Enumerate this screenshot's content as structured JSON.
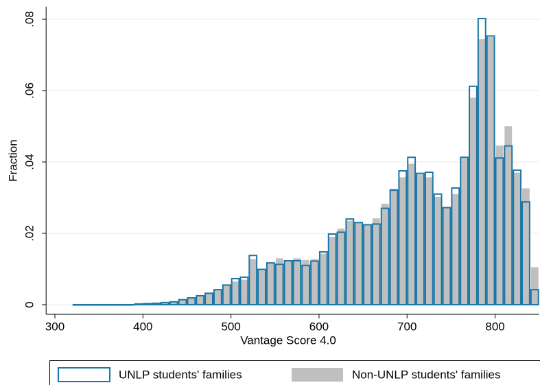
{
  "chart_data": {
    "type": "histogram",
    "xlabel": "Vantage Score 4.0",
    "ylabel": "Fraction",
    "bins": [
      320,
      330,
      340,
      350,
      360,
      370,
      380,
      390,
      400,
      410,
      420,
      430,
      440,
      450,
      460,
      470,
      480,
      490,
      500,
      510,
      520,
      530,
      540,
      550,
      560,
      570,
      580,
      590,
      600,
      610,
      620,
      630,
      640,
      650,
      660,
      670,
      680,
      690,
      700,
      710,
      720,
      730,
      740,
      750,
      760,
      770,
      780,
      790,
      800,
      810,
      820,
      830,
      840,
      850
    ],
    "series": [
      {
        "name": "Non-UNLP students' families",
        "color": "#c0c0c0",
        "style": "filled",
        "values": [
          0,
          0,
          0,
          0,
          0,
          0,
          0,
          0.0002,
          0.0003,
          0.0004,
          0.0005,
          0.0008,
          0.0014,
          0.0019,
          0.0025,
          0.0032,
          0.0042,
          0.0055,
          0.0065,
          0.007,
          0.0128,
          0.0099,
          0.0115,
          0.013,
          0.0122,
          0.013,
          0.0125,
          0.0128,
          0.0143,
          0.019,
          0.0213,
          0.0235,
          0.0228,
          0.0225,
          0.0242,
          0.0283,
          0.0325,
          0.0357,
          0.0395,
          0.0365,
          0.0357,
          0.0302,
          0.0273,
          0.031,
          0.041,
          0.058,
          0.0744,
          0.075,
          0.0446,
          0.05,
          0.037,
          0.0326,
          0.0105
        ]
      },
      {
        "name": "UNLP students' families",
        "color": "#1a76a8",
        "style": "outline",
        "values": [
          0,
          0,
          0,
          0,
          0,
          0,
          0,
          0.0002,
          0.0003,
          0.0004,
          0.0006,
          0.0008,
          0.0014,
          0.0019,
          0.0025,
          0.0032,
          0.0042,
          0.0055,
          0.0073,
          0.0077,
          0.0138,
          0.0099,
          0.0117,
          0.0113,
          0.0123,
          0.0123,
          0.011,
          0.0122,
          0.0148,
          0.0198,
          0.0203,
          0.024,
          0.023,
          0.0224,
          0.0226,
          0.027,
          0.0321,
          0.0375,
          0.0413,
          0.0368,
          0.0371,
          0.031,
          0.0272,
          0.0327,
          0.0413,
          0.0612,
          0.0802,
          0.0753,
          0.0411,
          0.0445,
          0.0377,
          0.0288,
          0.0042
        ]
      }
    ],
    "legend_order": [
      1,
      0
    ],
    "xlim": [
      290,
      850
    ],
    "xticks": [
      300,
      400,
      500,
      600,
      700,
      800
    ],
    "ylim": [
      -0.0027,
      0.0835
    ],
    "yticks": [
      0,
      {
        "value": 0.02,
        "label": ".02"
      },
      {
        "value": 0.04,
        "label": ".04"
      },
      {
        "value": 0.06,
        "label": ".06"
      },
      {
        "value": 0.08,
        "label": ".08"
      }
    ],
    "grid": true
  }
}
